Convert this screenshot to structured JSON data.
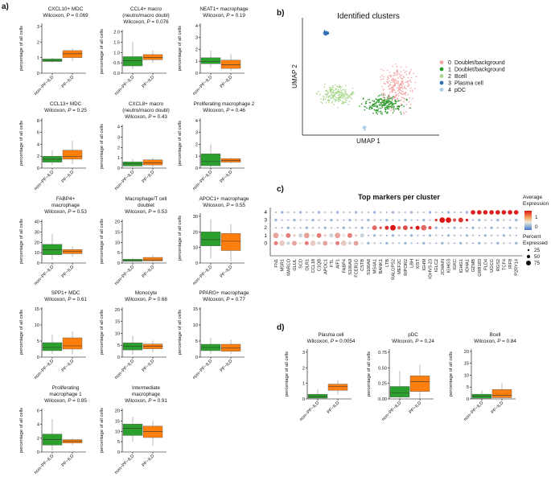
{
  "colors": {
    "green": "#2ca02c",
    "orange": "#ff7f0e",
    "umap_cluster_colors": [
      "#f4a5a5",
      "#2a9a2a",
      "#a8d68a",
      "#2f6fb0",
      "#a6cbe3"
    ]
  },
  "panels": {
    "a": "a)",
    "b": "b)",
    "c": "c)",
    "d": "d)"
  },
  "common": {
    "ylabel": "percentage of all cells",
    "groups": [
      "non−PF−ILD",
      "PF−ILD"
    ]
  },
  "chart_data": [
    {
      "type": "box",
      "panel": "a",
      "charts": [
        {
          "title": [
            "CXCL10+ MDC"
          ],
          "test": "Wilcoxon, ",
          "p_label": "P",
          "p_value": " = 0.069",
          "yticks": [
            0,
            1,
            2,
            3
          ],
          "ylim": [
            0,
            3.2
          ],
          "boxes": [
            {
              "group": "non-PF-ILD",
              "min": 0.7,
              "q1": 0.75,
              "median": 0.8,
              "q3": 0.92,
              "max": 1.0
            },
            {
              "group": "PF-ILD",
              "min": 0.8,
              "q1": 1.0,
              "median": 1.25,
              "q3": 1.45,
              "max": 1.6
            }
          ]
        },
        {
          "title": [
            "CCL4+ macro",
            "(neutro/macro doubl)"
          ],
          "test": "Wilcoxon, ",
          "p_label": "P",
          "p_value": " = 0.076",
          "yticks": [
            0.0,
            0.5,
            1.0,
            1.5,
            2.0
          ],
          "ylim": [
            0,
            2.1
          ],
          "boxes": [
            {
              "group": "non-PF-ILD",
              "min": 0.2,
              "q1": 0.35,
              "median": 0.6,
              "q3": 0.8,
              "max": 1.5
            },
            {
              "group": "PF-ILD",
              "min": 0.5,
              "q1": 0.65,
              "median": 0.75,
              "q3": 0.9,
              "max": 1.1
            }
          ]
        },
        {
          "title": [
            "NEAT1+ macrophage"
          ],
          "test": "Wilcoxon, ",
          "p_label": "P",
          "p_value": " = 0.19",
          "yticks": [
            0,
            1,
            2,
            3,
            4
          ],
          "ylim": [
            0,
            4.2
          ],
          "boxes": [
            {
              "group": "non-PF-ILD",
              "min": 0.5,
              "q1": 0.8,
              "median": 1.0,
              "q3": 1.3,
              "max": 1.9
            },
            {
              "group": "PF-ILD",
              "min": 0.2,
              "q1": 0.4,
              "median": 0.7,
              "q3": 1.1,
              "max": 1.6
            }
          ]
        },
        {
          "title": [
            "CCL13+ MDC"
          ],
          "test": "Wilcoxon, ",
          "p_label": "P",
          "p_value": " = 0.25",
          "yticks": [
            0,
            2,
            4,
            6,
            8
          ],
          "ylim": [
            0,
            8.4
          ],
          "boxes": [
            {
              "group": "non-PF-ILD",
              "min": 0.5,
              "q1": 1.0,
              "median": 1.5,
              "q3": 2.0,
              "max": 3.0
            },
            {
              "group": "PF-ILD",
              "min": 0.7,
              "q1": 1.5,
              "median": 2.0,
              "q3": 3.0,
              "max": 4.6
            }
          ]
        },
        {
          "title": [
            "CXCL8+ macro",
            "(neutro/macro doubl)"
          ],
          "test": "Wilcoxon, ",
          "p_label": "P",
          "p_value": " = 0.43",
          "yticks": [
            0,
            1,
            2,
            3,
            4
          ],
          "ylim": [
            0,
            4.2
          ],
          "boxes": [
            {
              "group": "non-PF-ILD",
              "min": 0.1,
              "q1": 0.2,
              "median": 0.4,
              "q3": 0.6,
              "max": 0.9
            },
            {
              "group": "PF-ILD",
              "min": 0.1,
              "q1": 0.3,
              "median": 0.5,
              "q3": 0.8,
              "max": 1.0
            }
          ]
        },
        {
          "title": [
            "Proliferating macrophage 2"
          ],
          "test": "Wilcoxon, ",
          "p_label": "P",
          "p_value": " = 0.46",
          "yticks": [
            0,
            1,
            2,
            3,
            4
          ],
          "ylim": [
            0,
            4.2
          ],
          "boxes": [
            {
              "group": "non-PF-ILD",
              "min": 0.0,
              "q1": 0.2,
              "median": 0.55,
              "q3": 1.2,
              "max": 2.0
            },
            {
              "group": "PF-ILD",
              "min": 0.4,
              "q1": 0.5,
              "median": 0.65,
              "q3": 0.8,
              "max": 0.9
            }
          ]
        },
        {
          "title": [
            "FABP4+",
            "macrophage"
          ],
          "test": "Wilcoxon, ",
          "p_label": "P",
          "p_value": " = 0.53",
          "yticks": [
            0,
            10,
            20,
            30,
            40
          ],
          "ylim": [
            0,
            42
          ],
          "boxes": [
            {
              "group": "non-PF-ILD",
              "min": 3,
              "q1": 8,
              "median": 13,
              "q3": 18,
              "max": 28
            },
            {
              "group": "PF-ILD",
              "min": 6,
              "q1": 9,
              "median": 11,
              "q3": 13,
              "max": 16
            }
          ]
        },
        {
          "title": [
            "Macrophage/T cell",
            "doublet"
          ],
          "test": "Wilcoxon, ",
          "p_label": "P",
          "p_value": " = 0.53",
          "yticks": [
            0,
            5,
            10,
            15,
            20
          ],
          "ylim": [
            0,
            21
          ],
          "boxes": [
            {
              "group": "non-PF-ILD",
              "min": 0.5,
              "q1": 0.8,
              "median": 1.2,
              "q3": 1.8,
              "max": 2.5
            },
            {
              "group": "PF-ILD",
              "min": 0.7,
              "q1": 1.0,
              "median": 1.5,
              "q3": 2.7,
              "max": 4.0
            }
          ]
        },
        {
          "title": [
            "APOC1+ macrophage"
          ],
          "test": "Wilcoxon, ",
          "p_label": "P",
          "p_value": " = 0.55",
          "yticks": [
            0,
            10,
            20,
            30
          ],
          "ylim": [
            0,
            32
          ],
          "boxes": [
            {
              "group": "non-PF-ILD",
              "min": 3,
              "q1": 11,
              "median": 15,
              "q3": 20,
              "max": 28
            },
            {
              "group": "PF-ILD",
              "min": 1,
              "q1": 8,
              "median": 14,
              "q3": 19,
              "max": 25
            }
          ]
        },
        {
          "title": [
            "SPP1+ MDC"
          ],
          "test": "Wilcoxon, ",
          "p_label": "P",
          "p_value": " = 0.61",
          "yticks": [
            0,
            5,
            10,
            15
          ],
          "ylim": [
            0,
            15.5
          ],
          "boxes": [
            {
              "group": "non-PF-ILD",
              "min": 1,
              "q1": 2,
              "median": 3,
              "q3": 4.5,
              "max": 7
            },
            {
              "group": "PF-ILD",
              "min": 1,
              "q1": 2.5,
              "median": 3.5,
              "q3": 6,
              "max": 8
            }
          ]
        },
        {
          "title": [
            "Monocyte"
          ],
          "test": "Wilcoxon, ",
          "p_label": "P",
          "p_value": " = 0.68",
          "yticks": [
            0,
            5,
            10,
            15,
            20
          ],
          "ylim": [
            0,
            21
          ],
          "boxes": [
            {
              "group": "non-PF-ILD",
              "min": 1,
              "q1": 3,
              "median": 4.5,
              "q3": 6,
              "max": 9
            },
            {
              "group": "PF-ILD",
              "min": 2,
              "q1": 3.5,
              "median": 4.5,
              "q3": 5.5,
              "max": 7
            }
          ]
        },
        {
          "title": [
            "PPARG+ macrophage"
          ],
          "test": "Wilcoxon, ",
          "p_label": "P",
          "p_value": " = 0.77",
          "yticks": [
            0,
            5,
            10,
            15
          ],
          "ylim": [
            0,
            15.5
          ],
          "boxes": [
            {
              "group": "non-PF-ILD",
              "min": 1,
              "q1": 2,
              "median": 3,
              "q3": 4,
              "max": 6
            },
            {
              "group": "PF-ILD",
              "min": 1,
              "q1": 1.8,
              "median": 2.8,
              "q3": 4,
              "max": 5.5
            }
          ]
        },
        {
          "title": [
            "Proliferating",
            "macrophage 1"
          ],
          "test": "Wilcoxon, ",
          "p_label": "P",
          "p_value": " = 0.85",
          "yticks": [
            0,
            2,
            4,
            6
          ],
          "ylim": [
            0,
            6.3
          ],
          "boxes": [
            {
              "group": "non-PF-ILD",
              "min": 0.2,
              "q1": 1.0,
              "median": 1.8,
              "q3": 2.6,
              "max": 4.8
            },
            {
              "group": "PF-ILD",
              "min": 1.0,
              "q1": 1.3,
              "median": 1.6,
              "q3": 1.8,
              "max": 2.0
            }
          ]
        },
        {
          "title": [
            "Intermediate",
            "macrophage"
          ],
          "test": "Wilcoxon, ",
          "p_label": "P",
          "p_value": " = 0.91",
          "yticks": [
            0,
            5,
            10,
            15,
            20
          ],
          "ylim": [
            0,
            21
          ],
          "boxes": [
            {
              "group": "non-PF-ILD",
              "min": 5,
              "q1": 8,
              "median": 11.5,
              "q3": 13.5,
              "max": 17
            },
            {
              "group": "PF-ILD",
              "min": 3,
              "q1": 7,
              "median": 10,
              "q3": 12.5,
              "max": 15
            }
          ]
        }
      ]
    },
    {
      "type": "scatter",
      "panel": "b",
      "title": "Identified clusters",
      "xlabel": "UMAP 1",
      "ylabel": "UMAP 2",
      "legend": [
        {
          "id": "0",
          "label": "Doublet/background"
        },
        {
          "id": "1",
          "label": "Doublet/background"
        },
        {
          "id": "2",
          "label": "Bcell"
        },
        {
          "id": "3",
          "label": "Plasma cell"
        },
        {
          "id": "4",
          "label": "pDC"
        }
      ]
    },
    {
      "type": "dot",
      "panel": "c",
      "title": "Top markers per cluster",
      "clusters": [
        "4",
        "3",
        "2",
        "1",
        "0"
      ],
      "genes": [
        "FN1",
        "MSR1",
        "MARCO",
        "GLUL",
        "SCD",
        "OLR1",
        "CCL18",
        "C1QB",
        "APOC1",
        "FTL",
        "AIF1",
        "FABP4",
        "S100A9",
        "FCER1G",
        "CSTB",
        "S100A8",
        "MS4A1",
        "BANK1",
        "LTB",
        "RALGPS2",
        "MEF2C",
        "RIPOR2",
        "LBH",
        "XIST",
        "IGHM",
        "IGHV3-23",
        "IGLC2",
        "JCHAIN",
        "IGHG3",
        "IGKC",
        "IGHG1",
        "IGHA1",
        "GZMB",
        "GRR183",
        "PLD4",
        "UGCG",
        "RGS2",
        "TCF4",
        "IRF8",
        "P2RY14"
      ],
      "legend_title": [
        "Average",
        "Expression"
      ],
      "expr_ticks": [
        "1",
        "0"
      ],
      "size_title": [
        "Percent",
        "Expressed"
      ],
      "size_labels": [
        "25",
        "50",
        "75"
      ]
    },
    {
      "type": "box",
      "panel": "d",
      "charts": [
        {
          "title": [
            "Plasma cell"
          ],
          "test": "Wilcoxon, ",
          "p_label": "P",
          "p_value": " = 0.0054",
          "yticks": [
            0,
            1,
            2,
            3
          ],
          "ylim": [
            0,
            3.2
          ],
          "boxes": [
            {
              "group": "non-PF-ILD",
              "min": 0.0,
              "q1": 0.05,
              "median": 0.15,
              "q3": 0.3,
              "max": 0.6
            },
            {
              "group": "PF-ILD",
              "min": 0.3,
              "q1": 0.55,
              "median": 0.8,
              "q3": 0.95,
              "max": 1.2
            }
          ]
        },
        {
          "title": [
            "pDC"
          ],
          "test": "Wilcoxon, ",
          "p_label": "P",
          "p_value": " = 0.24",
          "yticks": [
            0.0,
            0.25,
            0.5,
            0.75
          ],
          "ylim": [
            0,
            0.8
          ],
          "boxes": [
            {
              "group": "non-PF-ILD",
              "min": 0.0,
              "q1": 0.03,
              "median": 0.1,
              "q3": 0.2,
              "max": 0.45
            },
            {
              "group": "PF-ILD",
              "min": 0.0,
              "q1": 0.12,
              "median": 0.28,
              "q3": 0.37,
              "max": 0.55
            }
          ]
        },
        {
          "title": [
            "Bcell"
          ],
          "test": "Wilcoxon, ",
          "p_label": "P",
          "p_value": " = 0.84",
          "yticks": [
            0,
            5,
            10,
            15,
            20
          ],
          "ylim": [
            0,
            21
          ],
          "boxes": [
            {
              "group": "non-PF-ILD",
              "min": 0,
              "q1": 0.3,
              "median": 1.2,
              "q3": 2,
              "max": 3.5
            },
            {
              "group": "PF-ILD",
              "min": 0,
              "q1": 0.5,
              "median": 1.5,
              "q3": 4,
              "max": 6.5
            }
          ]
        }
      ]
    }
  ]
}
